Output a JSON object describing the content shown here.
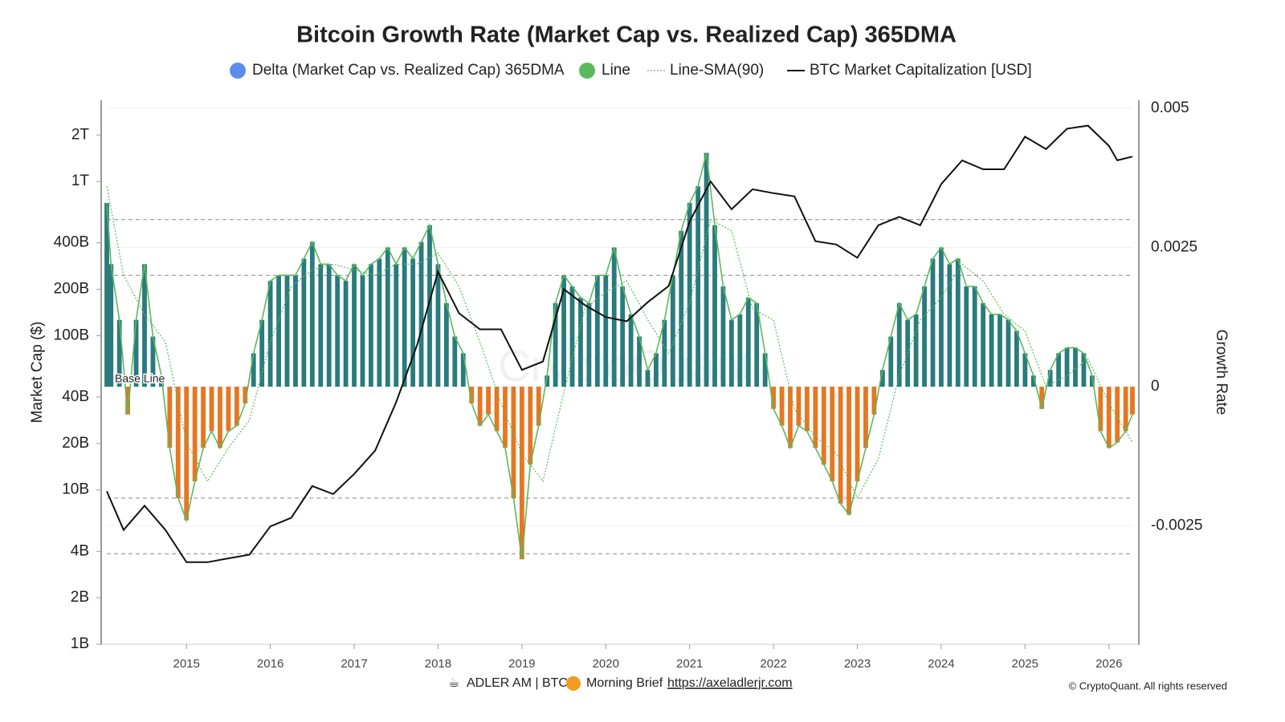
{
  "chart_data": {
    "type": "growth-rate",
    "title": "Bitcoin Growth Rate (Market Cap vs. Realized Cap) 365DMA",
    "y_label": "Market Cap ($)",
    "y2_label": "Growth Rate",
    "watermark": "CryptoQuant",
    "annotation": "Base Line",
    "footer": {
      "author": "ADLER AM | BTC",
      "brief": "Morning Brief",
      "link": "https://axeladlerjr.com",
      "copyright": "© CryptoQuant. All rights reserved"
    },
    "xlim": [
      2014.05,
      2026.28
    ],
    "xticks": [
      2015,
      2016,
      2017,
      2018,
      2019,
      2020,
      2021,
      2022,
      2023,
      2024,
      2025,
      2026
    ],
    "ylim": [
      1000000000,
      3360000000000
    ],
    "log_y": true,
    "yticks": [
      {
        "value": 1000000000,
        "label": "1B"
      },
      {
        "value": 2000000000,
        "label": "2B"
      },
      {
        "value": 4000000000,
        "label": "4B"
      },
      {
        "value": 10000000000,
        "label": "10B"
      },
      {
        "value": 20000000000,
        "label": "20B"
      },
      {
        "value": 40000000000,
        "label": "40B"
      },
      {
        "value": 100000000000,
        "label": "100B"
      },
      {
        "value": 200000000000,
        "label": "200B"
      },
      {
        "value": 400000000000,
        "label": "400B"
      },
      {
        "value": 1000000000000,
        "label": "1T"
      },
      {
        "value": 2000000000000,
        "label": "2T"
      }
    ],
    "y2lim": [
      -0.004625,
      0.005144
    ],
    "y2ticks": [
      0.005,
      0.0025,
      0,
      -0.0025
    ],
    "grid": true,
    "reference_lines": [
      0.003,
      0.002,
      -0.002,
      -0.003
    ],
    "series": [
      {
        "name": "Delta (Market Cap vs. Realized Cap) 365DMA",
        "color": "#5b8def",
        "axis": "y2",
        "style": "bars",
        "positive_color": "#2a7b7d",
        "negative_color": "#e67722",
        "x": [
          2014.05,
          2014.1,
          2014.2,
          2014.3,
          2014.4,
          2014.5,
          2014.6,
          2014.7,
          2014.8,
          2014.9,
          2015.0,
          2015.1,
          2015.2,
          2015.3,
          2015.4,
          2015.5,
          2015.6,
          2015.7,
          2015.8,
          2015.9,
          2016.0,
          2016.1,
          2016.2,
          2016.3,
          2016.4,
          2016.5,
          2016.6,
          2016.7,
          2016.8,
          2016.9,
          2017.0,
          2017.1,
          2017.2,
          2017.3,
          2017.4,
          2017.5,
          2017.6,
          2017.7,
          2017.8,
          2017.9,
          2018.0,
          2018.1,
          2018.2,
          2018.3,
          2018.4,
          2018.5,
          2018.6,
          2018.7,
          2018.8,
          2018.9,
          2019.0,
          2019.1,
          2019.2,
          2019.3,
          2019.4,
          2019.5,
          2019.6,
          2019.7,
          2019.8,
          2019.9,
          2020.0,
          2020.1,
          2020.2,
          2020.3,
          2020.4,
          2020.5,
          2020.6,
          2020.7,
          2020.8,
          2020.9,
          2021.0,
          2021.1,
          2021.2,
          2021.3,
          2021.4,
          2021.5,
          2021.6,
          2021.7,
          2021.8,
          2021.9,
          2022.0,
          2022.1,
          2022.2,
          2022.3,
          2022.4,
          2022.5,
          2022.6,
          2022.7,
          2022.8,
          2022.9,
          2023.0,
          2023.1,
          2023.2,
          2023.3,
          2023.4,
          2023.5,
          2023.6,
          2023.7,
          2023.8,
          2023.9,
          2024.0,
          2024.1,
          2024.2,
          2024.3,
          2024.4,
          2024.5,
          2024.6,
          2024.7,
          2024.8,
          2024.9,
          2025.0,
          2025.1,
          2025.2,
          2025.3,
          2025.4,
          2025.5,
          2025.6,
          2025.7,
          2025.8,
          2025.9,
          2026.0,
          2026.1,
          2026.2,
          2026.28
        ],
        "values": [
          0.0033,
          0.0022,
          0.0012,
          -0.0005,
          0.0012,
          0.0022,
          0.0009,
          0.0002,
          -0.0011,
          -0.002,
          -0.0024,
          -0.0017,
          -0.0011,
          -0.0008,
          -0.0011,
          -0.0008,
          -0.0007,
          -0.0003,
          0.0006,
          0.0012,
          0.0019,
          0.002,
          0.002,
          0.002,
          0.0023,
          0.0026,
          0.0022,
          0.0022,
          0.002,
          0.0019,
          0.0022,
          0.002,
          0.0022,
          0.0023,
          0.0025,
          0.0022,
          0.0025,
          0.0023,
          0.0026,
          0.0029,
          0.0022,
          0.0015,
          0.0009,
          0.0006,
          -0.0003,
          -0.0007,
          -0.0005,
          -0.0008,
          -0.0011,
          -0.002,
          -0.0031,
          -0.0014,
          -0.0007,
          0.0002,
          0.0015,
          0.002,
          0.0018,
          0.0016,
          0.0015,
          0.002,
          0.002,
          0.0025,
          0.0018,
          0.0013,
          0.0009,
          0.0003,
          0.0006,
          0.0012,
          0.002,
          0.0028,
          0.0033,
          0.0036,
          0.0042,
          0.0029,
          0.0018,
          0.0012,
          0.0013,
          0.0016,
          0.0015,
          0.0006,
          -0.0004,
          -0.0007,
          -0.0011,
          -0.0007,
          -0.0008,
          -0.0011,
          -0.0014,
          -0.0017,
          -0.0021,
          -0.0023,
          -0.0017,
          -0.0011,
          -0.0005,
          0.0003,
          0.0009,
          0.0015,
          0.0012,
          0.0013,
          0.0018,
          0.0023,
          0.0025,
          0.0022,
          0.0023,
          0.0018,
          0.0018,
          0.0015,
          0.0013,
          0.0013,
          0.0012,
          0.001,
          0.0006,
          0.0002,
          -0.0004,
          0.0003,
          0.0006,
          0.0007,
          0.0007,
          0.0006,
          0.0002,
          -0.0008,
          -0.0011,
          -0.001,
          -0.0008,
          -0.0005
        ]
      },
      {
        "name": "Line",
        "color": "#5cb85c",
        "axis": "y2",
        "style": "outline"
      },
      {
        "name": "Line-SMA(90)",
        "color": "#5cb85c",
        "axis": "y2",
        "style": "dotted",
        "x": [
          2014.05,
          2014.25,
          2014.5,
          2014.75,
          2015.0,
          2015.25,
          2015.5,
          2015.75,
          2016.0,
          2016.25,
          2016.5,
          2016.75,
          2017.0,
          2017.25,
          2017.5,
          2017.75,
          2018.0,
          2018.25,
          2018.5,
          2018.75,
          2019.0,
          2019.25,
          2019.5,
          2019.75,
          2020.0,
          2020.25,
          2020.5,
          2020.75,
          2021.0,
          2021.25,
          2021.5,
          2021.75,
          2022.0,
          2022.25,
          2022.5,
          2022.75,
          2023.0,
          2023.25,
          2023.5,
          2023.75,
          2024.0,
          2024.25,
          2024.5,
          2024.75,
          2025.0,
          2025.25,
          2025.5,
          2025.75,
          2026.0,
          2026.28
        ],
        "values": [
          0.0036,
          0.002,
          0.0013,
          0.0008,
          -0.001,
          -0.0017,
          -0.0011,
          -0.0006,
          0.0008,
          0.0018,
          0.0021,
          0.0022,
          0.0021,
          0.002,
          0.0022,
          0.0022,
          0.0024,
          0.0018,
          0.0008,
          -0.0003,
          -0.0012,
          -0.0017,
          -0.0001,
          0.0014,
          0.0017,
          0.0019,
          0.0012,
          0.0006,
          0.0015,
          0.003,
          0.0028,
          0.0014,
          0.0012,
          -0.0004,
          -0.0009,
          -0.0012,
          -0.002,
          -0.0013,
          0.0002,
          0.0012,
          0.0016,
          0.0022,
          0.0019,
          0.0013,
          0.001,
          0,
          0.0002,
          0.0005,
          -0.0003,
          -0.001
        ]
      },
      {
        "name": "BTC Market Capitalization [USD]",
        "color": "#111111",
        "axis": "y",
        "style": "line",
        "x": [
          2014.05,
          2014.25,
          2014.5,
          2014.75,
          2015.0,
          2015.25,
          2015.5,
          2015.75,
          2016.0,
          2016.25,
          2016.5,
          2016.75,
          2017.0,
          2017.25,
          2017.5,
          2017.75,
          2018.0,
          2018.25,
          2018.5,
          2018.75,
          2019.0,
          2019.25,
          2019.5,
          2019.75,
          2020.0,
          2020.25,
          2020.5,
          2020.75,
          2021.0,
          2021.25,
          2021.5,
          2021.75,
          2022.0,
          2022.25,
          2022.5,
          2022.75,
          2023.0,
          2023.25,
          2023.5,
          2023.75,
          2024.0,
          2024.25,
          2024.5,
          2024.75,
          2025.0,
          2025.25,
          2025.5,
          2025.75,
          2026.0,
          2026.1,
          2026.28
        ],
        "values": [
          9800000000,
          5500000000,
          7900000000,
          5500000000,
          3400000000,
          3400000000,
          3600000000,
          3800000000,
          5800000000,
          6600000000,
          10600000000,
          9400000000,
          12700000000,
          18000000000,
          37000000000,
          87000000000,
          260000000000,
          140000000000,
          110000000000,
          110000000000,
          60000000000,
          68000000000,
          200000000000,
          158000000000,
          132000000000,
          124000000000,
          165000000000,
          210000000000,
          550000000000,
          1000000000000,
          660000000000,
          890000000000,
          840000000000,
          800000000000,
          410000000000,
          390000000000,
          320000000000,
          520000000000,
          590000000000,
          520000000000,
          960000000000,
          1370000000000,
          1200000000000,
          1200000000000,
          1950000000000,
          1620000000000,
          2200000000000,
          2300000000000,
          1700000000000,
          1370000000000,
          1450000000000
        ]
      }
    ]
  }
}
